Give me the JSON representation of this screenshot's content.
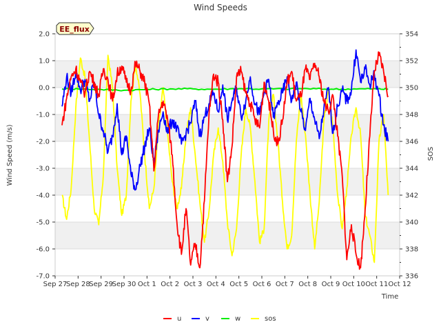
{
  "chart_data": {
    "type": "line",
    "title": "Wind Speeds",
    "badge": "EE_flux",
    "xlabel": "Time",
    "ylabel": "Wind Speed (m/s)",
    "y2label": "SOS",
    "xlim": [
      0,
      15
    ],
    "ylim": [
      -7,
      2
    ],
    "y2lim": [
      336,
      354
    ],
    "x_ticks": [
      {
        "v": 0,
        "label": "Sep 27"
      },
      {
        "v": 1,
        "label": "Sep 28"
      },
      {
        "v": 2,
        "label": "Sep 29"
      },
      {
        "v": 3,
        "label": "Sep 30"
      },
      {
        "v": 4,
        "label": "Oct 1"
      },
      {
        "v": 5,
        "label": "Oct 2"
      },
      {
        "v": 6,
        "label": "Oct 3"
      },
      {
        "v": 7,
        "label": "Oct 4"
      },
      {
        "v": 8,
        "label": "Oct 5"
      },
      {
        "v": 9,
        "label": "Oct 6"
      },
      {
        "v": 10,
        "label": "Oct 7"
      },
      {
        "v": 11,
        "label": "Oct 8"
      },
      {
        "v": 12,
        "label": "Oct 9"
      },
      {
        "v": 13,
        "label": "Oct 10"
      },
      {
        "v": 14,
        "label": "Oct 11"
      },
      {
        "v": 15,
        "label": "Oct 12"
      }
    ],
    "y_ticks": [
      {
        "v": 2,
        "label": "2.0"
      },
      {
        "v": 1,
        "label": "1.0"
      },
      {
        "v": 0,
        "label": "0.0"
      },
      {
        "v": -1,
        "label": "-1.0"
      },
      {
        "v": -2,
        "label": "-2.0"
      },
      {
        "v": -3,
        "label": "-3.0"
      },
      {
        "v": -4,
        "label": "-4.0"
      },
      {
        "v": -5,
        "label": "-5.0"
      },
      {
        "v": -6,
        "label": "-6.0"
      },
      {
        "v": -7,
        "label": "-7.0"
      }
    ],
    "y2_ticks": [
      {
        "v": 354,
        "label": "354"
      },
      {
        "v": 352,
        "label": "352"
      },
      {
        "v": 350,
        "label": "350"
      },
      {
        "v": 348,
        "label": "348"
      },
      {
        "v": 346,
        "label": "346"
      },
      {
        "v": 344,
        "label": "344"
      },
      {
        "v": 342,
        "label": "342"
      },
      {
        "v": 340,
        "label": "340"
      },
      {
        "v": 338,
        "label": "338"
      },
      {
        "v": 336,
        "label": "336"
      }
    ],
    "series": [
      {
        "name": "u",
        "color": "#ff0000",
        "axis": "left",
        "x": [
          0.3,
          0.5,
          0.7,
          0.9,
          1.1,
          1.3,
          1.5,
          1.7,
          1.9,
          2.1,
          2.3,
          2.5,
          2.7,
          2.9,
          3.1,
          3.3,
          3.5,
          3.7,
          3.9,
          4.1,
          4.3,
          4.5,
          4.7,
          4.9,
          5.1,
          5.3,
          5.5,
          5.7,
          5.9,
          6.1,
          6.3,
          6.5,
          6.7,
          6.9,
          7.1,
          7.3,
          7.5,
          7.7,
          7.9,
          8.1,
          8.3,
          8.5,
          8.7,
          8.9,
          9.1,
          9.3,
          9.5,
          9.7,
          9.9,
          10.1,
          10.3,
          10.5,
          10.7,
          10.9,
          11.1,
          11.3,
          11.5,
          11.7,
          11.9,
          12.1,
          12.3,
          12.5,
          12.7,
          12.9,
          13.1,
          13.3,
          13.5,
          13.7,
          13.9,
          14.1,
          14.3,
          14.5
        ],
        "y": [
          -1.4,
          -0.4,
          0.4,
          0.7,
          0.2,
          -0.2,
          0.6,
          0.2,
          -0.3,
          0.7,
          0.3,
          -0.5,
          0.5,
          0.8,
          0.2,
          -0.1,
          0.9,
          0.6,
          0.2,
          -0.6,
          -3.1,
          -1.0,
          -0.5,
          -1.2,
          -2.5,
          -5.0,
          -6.2,
          -4.5,
          -6.6,
          -5.8,
          -6.7,
          -4.2,
          -1.0,
          0.5,
          0.2,
          -1.2,
          -3.5,
          -2.2,
          0.4,
          0.6,
          -0.2,
          -0.6,
          -1.2,
          -1.5,
          0.2,
          -0.5,
          -1.6,
          -2.1,
          -1.2,
          0.2,
          0.6,
          -0.5,
          -0.3,
          0.7,
          0.3,
          0.9,
          0.4,
          -0.5,
          -0.9,
          -0.3,
          -1.8,
          -3.3,
          -6.4,
          -5.1,
          -6.2,
          -6.7,
          -4.5,
          -1.8,
          0.6,
          1.2,
          0.6,
          -0.3
        ]
      },
      {
        "name": "v",
        "color": "#0000ff",
        "axis": "left",
        "x": [
          0.3,
          0.5,
          0.7,
          0.9,
          1.1,
          1.3,
          1.5,
          1.7,
          1.9,
          2.1,
          2.3,
          2.5,
          2.7,
          2.9,
          3.1,
          3.3,
          3.5,
          3.7,
          3.9,
          4.1,
          4.3,
          4.5,
          4.7,
          4.9,
          5.1,
          5.3,
          5.5,
          5.7,
          5.9,
          6.1,
          6.3,
          6.5,
          6.7,
          6.9,
          7.1,
          7.3,
          7.5,
          7.7,
          7.9,
          8.1,
          8.3,
          8.5,
          8.7,
          8.9,
          9.1,
          9.3,
          9.5,
          9.7,
          9.9,
          10.1,
          10.3,
          10.5,
          10.7,
          10.9,
          11.1,
          11.3,
          11.5,
          11.7,
          11.9,
          12.1,
          12.3,
          12.5,
          12.7,
          12.9,
          13.1,
          13.3,
          13.5,
          13.7,
          13.9,
          14.1,
          14.3,
          14.5
        ],
        "y": [
          -0.7,
          0.4,
          -0.2,
          0.6,
          -0.1,
          0.3,
          -0.5,
          0.2,
          -1.0,
          -1.6,
          -2.4,
          -1.8,
          -0.6,
          -2.5,
          -1.8,
          -3.2,
          -3.8,
          -2.9,
          -2.2,
          -1.5,
          -2.8,
          -1.6,
          -0.9,
          -1.7,
          -1.2,
          -1.5,
          -2.1,
          -1.7,
          -1.3,
          -0.5,
          -1.8,
          -1.1,
          -0.6,
          -0.2,
          -0.9,
          0.1,
          -1.2,
          -0.5,
          0.0,
          -1.1,
          -0.5,
          0.4,
          -0.6,
          -1.0,
          -0.2,
          0.3,
          -1.1,
          -0.6,
          -0.2,
          0.4,
          -0.5,
          0.2,
          -0.9,
          -1.6,
          -0.4,
          -1.2,
          -1.9,
          -0.8,
          0.0,
          -1.7,
          -0.7,
          -0.1,
          -0.5,
          -0.1,
          1.4,
          0.2,
          0.7,
          0.1,
          0.5,
          -0.3,
          -1.4,
          -2.0
        ]
      },
      {
        "name": "w",
        "color": "#00ee00",
        "axis": "left",
        "x": [
          0.3,
          1.0,
          2.0,
          3.0,
          4.0,
          5.0,
          6.0,
          7.0,
          8.0,
          9.0,
          10.0,
          11.0,
          12.0,
          13.0,
          14.0,
          14.5
        ],
        "y": [
          -0.05,
          -0.05,
          -0.07,
          -0.1,
          -0.07,
          -0.05,
          -0.05,
          -0.06,
          -0.04,
          -0.05,
          -0.05,
          -0.04,
          -0.06,
          -0.05,
          -0.05,
          -0.06
        ]
      },
      {
        "name": "sos",
        "color": "#ffff00",
        "axis": "right",
        "x": [
          0.3,
          0.5,
          0.7,
          0.9,
          1.1,
          1.3,
          1.5,
          1.7,
          1.9,
          2.1,
          2.3,
          2.5,
          2.7,
          2.9,
          3.1,
          3.3,
          3.5,
          3.7,
          3.9,
          4.1,
          4.3,
          4.5,
          4.7,
          4.9,
          5.1,
          5.3,
          5.5,
          5.7,
          5.9,
          6.1,
          6.3,
          6.5,
          6.7,
          6.9,
          7.1,
          7.3,
          7.5,
          7.7,
          7.9,
          8.1,
          8.3,
          8.5,
          8.7,
          8.9,
          9.1,
          9.3,
          9.5,
          9.7,
          9.9,
          10.1,
          10.3,
          10.5,
          10.7,
          10.9,
          11.1,
          11.3,
          11.5,
          11.7,
          11.9,
          12.1,
          12.3,
          12.5,
          12.7,
          12.9,
          13.1,
          13.3,
          13.5,
          13.7,
          13.9,
          14.1,
          14.3,
          14.5
        ],
        "y": [
          342.0,
          340.2,
          342.5,
          348.5,
          352.2,
          350.8,
          346.0,
          341.0,
          339.8,
          343.5,
          352.4,
          350.0,
          344.0,
          340.5,
          342.0,
          349.0,
          351.8,
          349.5,
          345.0,
          341.0,
          342.5,
          347.0,
          350.0,
          346.5,
          343.0,
          341.0,
          342.5,
          346.5,
          348.5,
          345.0,
          341.5,
          338.5,
          340.8,
          345.0,
          347.0,
          344.5,
          340.0,
          337.5,
          339.5,
          345.0,
          348.5,
          347.0,
          343.0,
          338.5,
          339.5,
          347.5,
          349.5,
          346.0,
          341.5,
          338.0,
          339.0,
          346.0,
          349.5,
          346.5,
          342.0,
          338.0,
          341.5,
          347.5,
          349.8,
          347.0,
          342.0,
          339.5,
          342.5,
          346.5,
          348.5,
          346.5,
          340.5,
          339.0,
          337.0,
          346.0,
          348.0,
          342.0
        ]
      }
    ],
    "legend": {
      "placement": "bottom-center",
      "entries": [
        "u",
        "v",
        "w",
        "sos"
      ]
    }
  }
}
